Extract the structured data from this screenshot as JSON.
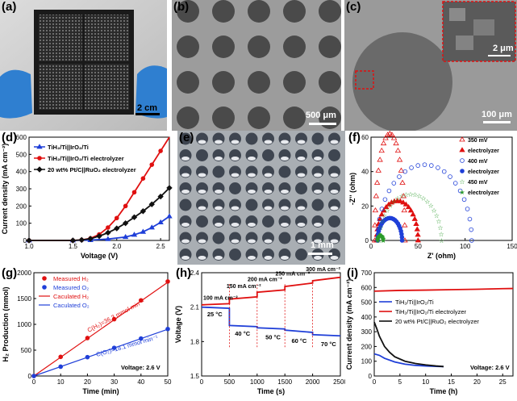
{
  "panels": {
    "a": {
      "label": "(a)",
      "scale": "2 cm"
    },
    "b": {
      "label": "(b)",
      "scale": "500 μm"
    },
    "c": {
      "label": "(c)",
      "scale": "100 μm",
      "inset_scale": "2 μm"
    },
    "e": {
      "label": "(e)",
      "scale": "1 mm"
    }
  },
  "chart_data": [
    {
      "id": "d",
      "label": "(d)",
      "type": "line",
      "xlabel": "Voltage (V)",
      "ylabel": "Current density (mA cm⁻²)",
      "xlim": [
        1.0,
        2.6
      ],
      "ylim": [
        0,
        600
      ],
      "xticks": [
        "1.0",
        "1.5",
        "2.0",
        "2.5"
      ],
      "yticks": [
        "0",
        "100",
        "200",
        "300",
        "400",
        "500",
        "600"
      ],
      "series": [
        {
          "name": "TiH₂/Ti||IrO₂/Ti",
          "color": "#1f3fd8",
          "marker": "triangle",
          "x": [
            1.0,
            1.5,
            1.7,
            1.9,
            2.1,
            2.2,
            2.3,
            2.4,
            2.5,
            2.6
          ],
          "y": [
            0,
            0,
            2,
            8,
            20,
            33,
            50,
            75,
            105,
            140
          ]
        },
        {
          "name": "TiH₂/Ti||IrO₂/Ti electrolyzer",
          "color": "#e01010",
          "marker": "circle",
          "x": [
            1.0,
            1.5,
            1.6,
            1.7,
            1.8,
            1.9,
            2.0,
            2.1,
            2.2,
            2.3,
            2.4,
            2.5,
            2.6
          ],
          "y": [
            0,
            0,
            3,
            12,
            35,
            75,
            130,
            200,
            280,
            360,
            440,
            520,
            610
          ]
        },
        {
          "name": "20 wt% Pt/C||RuO₂ electrolyzer",
          "color": "#111111",
          "marker": "diamond",
          "x": [
            1.0,
            1.5,
            1.6,
            1.7,
            1.8,
            1.9,
            2.0,
            2.1,
            2.2,
            2.3,
            2.4,
            2.5,
            2.6
          ],
          "y": [
            0,
            0,
            3,
            10,
            25,
            45,
            70,
            100,
            135,
            170,
            210,
            255,
            305
          ]
        }
      ]
    },
    {
      "id": "f",
      "label": "(f)",
      "type": "scatter",
      "xlabel": "Z' (ohm)",
      "ylabel": "-Z'' (ohm)",
      "xlim": [
        0,
        150
      ],
      "ylim": [
        0,
        60
      ],
      "xticks": [
        "0",
        "50",
        "100",
        "150"
      ],
      "yticks": [
        "0",
        "20",
        "40",
        "60"
      ],
      "series": [
        {
          "name": "350 mV",
          "color": "#e01010",
          "marker": "triangle",
          "filled": false,
          "center": 20,
          "radius": 16,
          "height": 62
        },
        {
          "name": "350 mV electrolyzer",
          "color": "#e01010",
          "marker": "triangle",
          "filled": true,
          "center": 28,
          "radius": 22,
          "height": 23
        },
        {
          "name": "400 mV",
          "color": "#1f3fd8",
          "marker": "circle",
          "filled": false,
          "center": 57,
          "radius": 50,
          "height": 44
        },
        {
          "name": "400 mV electrolyzer",
          "color": "#1f3fd8",
          "marker": "circle",
          "filled": true,
          "center": 20,
          "radius": 13,
          "height": 13
        },
        {
          "name": "450 mV",
          "color": "#2a9a2a",
          "marker": "star",
          "filled": false,
          "center": 42,
          "radius": 33,
          "height": 27
        },
        {
          "name": "450 mV electrolyzer",
          "color": "#2a9a2a",
          "marker": "star",
          "filled": true,
          "center": 10,
          "radius": 3,
          "height": 3
        }
      ],
      "legend": [
        {
          "text": "350 mV",
          "color": "#e01010"
        },
        {
          "text": "electrolyzer",
          "color": "#e01010"
        },
        {
          "text": "400 mV",
          "color": "#1f3fd8"
        },
        {
          "text": "electrolyzer",
          "color": "#1f3fd8"
        },
        {
          "text": "450 mV",
          "color": "#2a9a2a"
        },
        {
          "text": "electrolyzer",
          "color": "#2a9a2a"
        }
      ]
    },
    {
      "id": "g",
      "label": "(g)",
      "type": "scatter",
      "xlabel": "Time (min)",
      "ylabel": "H₂ Production (mmol)",
      "xlim": [
        0,
        50
      ],
      "ylim": [
        0,
        2000
      ],
      "xticks": [
        "0",
        "10",
        "20",
        "30",
        "40",
        "50"
      ],
      "yticks": [
        "0",
        "500",
        "1000",
        "1500",
        "2000"
      ],
      "series": [
        {
          "name": "Measured H₂",
          "color": "#e01010",
          "x": [
            0,
            10,
            20,
            30,
            40,
            50
          ],
          "y": [
            0,
            370,
            735,
            1100,
            1465,
            1830
          ]
        },
        {
          "name": "Measured O₂",
          "color": "#1f3fd8",
          "x": [
            0,
            10,
            20,
            30,
            40,
            50
          ],
          "y": [
            0,
            180,
            365,
            545,
            725,
            910
          ]
        }
      ],
      "lines": [
        {
          "name": "Caculated H₂",
          "color": "#e01010",
          "slope": 36.3
        },
        {
          "name": "Caculated O₂",
          "color": "#1f3fd8",
          "slope": 18.1
        }
      ],
      "annotations": [
        "C(H₂)=36.3 mmol min⁻¹",
        "C(O₂)=18.1 mmol min⁻¹",
        "Voltage:  2.6 V"
      ]
    },
    {
      "id": "h",
      "label": "(h)",
      "type": "line",
      "xlabel": "Time (s)",
      "ylabel": "Voltage (V)",
      "xlim": [
        0,
        2500
      ],
      "ylim": [
        1.5,
        2.4
      ],
      "xticks": [
        "0",
        "500",
        "1000",
        "1500",
        "2000",
        "2500"
      ],
      "yticks": [
        "1.5",
        "1.8",
        "2.1",
        "2.4"
      ],
      "series": [
        {
          "name": "current steps",
          "color": "#e01010",
          "segments": [
            [
              0,
              500,
              2.12,
              2.13
            ],
            [
              500,
              1000,
              2.17,
              2.19
            ],
            [
              1000,
              1500,
              2.23,
              2.25
            ],
            [
              1500,
              2000,
              2.28,
              2.31
            ],
            [
              2000,
              2500,
              2.33,
              2.36
            ]
          ]
        },
        {
          "name": "temperature steps",
          "color": "#1f3fd8",
          "segments": [
            [
              0,
              500,
              2.1,
              2.09
            ],
            [
              500,
              1000,
              1.94,
              1.93
            ],
            [
              1000,
              1500,
              1.92,
              1.91
            ],
            [
              1500,
              2000,
              1.9,
              1.88
            ],
            [
              2000,
              2500,
              1.86,
              1.85
            ]
          ]
        }
      ],
      "annotations": [
        "100 mA cm⁻²",
        "150 mA cm⁻²",
        "200 mA cm⁻²",
        "250 mA cm⁻²",
        "300 mA cm⁻²",
        "25 °C",
        "40 °C",
        "50 °C",
        "60 °C",
        "70 °C"
      ]
    },
    {
      "id": "i",
      "label": "(i)",
      "type": "line",
      "xlabel": "Time (h)",
      "ylabel": "Current density (mA cm⁻²)",
      "xlim": [
        0,
        27
      ],
      "ylim": [
        0,
        700
      ],
      "xticks": [
        "0",
        "5",
        "10",
        "15",
        "20",
        "25"
      ],
      "yticks": [
        "0",
        "100",
        "200",
        "300",
        "400",
        "500",
        "600",
        "700"
      ],
      "series": [
        {
          "name": "TiH₂/Ti||IrO₂/Ti",
          "color": "#1f3fd8",
          "x": [
            0,
            1,
            2,
            4,
            6,
            8,
            10,
            12,
            13.5
          ],
          "y": [
            150,
            140,
            120,
            95,
            80,
            72,
            68,
            65,
            64
          ]
        },
        {
          "name": "TiH₂/Ti||IrO₂/Ti electrolyzer",
          "color": "#e01010",
          "x": [
            0,
            5,
            10,
            15,
            20,
            25,
            27
          ],
          "y": [
            575,
            580,
            582,
            585,
            588,
            592,
            593
          ]
        },
        {
          "name": "20 wt% Pt/C||RuO₂ electrolyzer",
          "color": "#111111",
          "x": [
            0,
            0.5,
            1,
            2,
            3,
            4,
            6,
            8,
            10,
            12,
            13.5
          ],
          "y": [
            365,
            320,
            270,
            200,
            160,
            130,
            100,
            85,
            75,
            68,
            64
          ]
        }
      ],
      "annotations": [
        "Voltage:  2.6 V"
      ]
    }
  ]
}
